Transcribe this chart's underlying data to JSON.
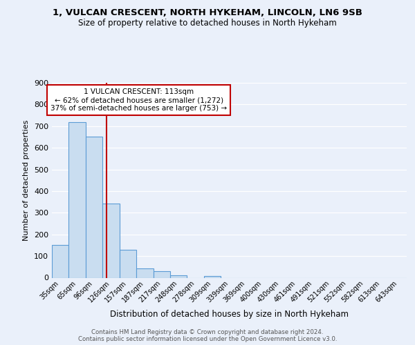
{
  "title1": "1, VULCAN CRESCENT, NORTH HYKEHAM, LINCOLN, LN6 9SB",
  "title2": "Size of property relative to detached houses in North Hykeham",
  "xlabel": "Distribution of detached houses by size in North Hykeham",
  "ylabel": "Number of detached properties",
  "footer1": "Contains HM Land Registry data © Crown copyright and database right 2024.",
  "footer2": "Contains public sector information licensed under the Open Government Licence v3.0.",
  "categories": [
    "35sqm",
    "65sqm",
    "96sqm",
    "126sqm",
    "157sqm",
    "187sqm",
    "217sqm",
    "248sqm",
    "278sqm",
    "309sqm",
    "339sqm",
    "369sqm",
    "400sqm",
    "430sqm",
    "461sqm",
    "491sqm",
    "521sqm",
    "552sqm",
    "582sqm",
    "613sqm",
    "643sqm"
  ],
  "values": [
    150,
    718,
    652,
    343,
    130,
    42,
    30,
    12,
    0,
    8,
    0,
    0,
    0,
    0,
    0,
    0,
    0,
    0,
    0,
    0,
    0
  ],
  "bar_color": "#c9ddf0",
  "bar_edge_color": "#5b9bd5",
  "vline_x": 2.75,
  "vline_color": "#c00000",
  "annotation_text": "1 VULCAN CRESCENT: 113sqm\n← 62% of detached houses are smaller (1,272)\n37% of semi-detached houses are larger (753) →",
  "annotation_box_color": "white",
  "annotation_box_edge_color": "#c00000",
  "bg_color": "#eaf0fa",
  "plot_bg_color": "#eaf0fa",
  "ylim": [
    0,
    900
  ],
  "yticks": [
    0,
    100,
    200,
    300,
    400,
    500,
    600,
    700,
    800,
    900
  ]
}
